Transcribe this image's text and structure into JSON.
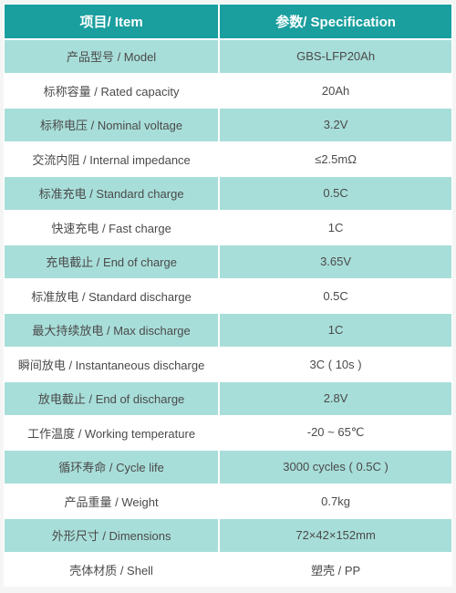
{
  "table": {
    "type": "table",
    "header_bg": "#1a9e9e",
    "header_color": "#ffffff",
    "row_odd_bg": "#a8ded9",
    "row_even_bg": "#ffffff",
    "text_color": "#4a4a4a",
    "border_color": "#ffffff",
    "font_size": 13,
    "header_font_size": 15,
    "columns": [
      {
        "label": "项目/ Item"
      },
      {
        "label": "参数/ Specification"
      }
    ],
    "rows": [
      {
        "item": "产品型号 / Model",
        "spec": "GBS-LFP20Ah"
      },
      {
        "item": "标称容量 / Rated capacity",
        "spec": "20Ah"
      },
      {
        "item": "标称电压 / Nominal voltage",
        "spec": "3.2V"
      },
      {
        "item": "交流内阻 / Internal impedance",
        "spec": "≤2.5mΩ"
      },
      {
        "item": "标准充电 / Standard charge",
        "spec": "0.5C"
      },
      {
        "item": "快速充电 / Fast charge",
        "spec": "1C"
      },
      {
        "item": "充电截止 / End of charge",
        "spec": "3.65V"
      },
      {
        "item": "标准放电 / Standard discharge",
        "spec": "0.5C"
      },
      {
        "item": "最大持续放电 / Max discharge",
        "spec": "1C"
      },
      {
        "item": "瞬间放电 / Instantaneous discharge",
        "spec": "3C ( 10s )"
      },
      {
        "item": "放电截止 / End of discharge",
        "spec": "2.8V"
      },
      {
        "item": "工作温度 / Working temperature",
        "spec": "-20 ~ 65℃"
      },
      {
        "item": "循环寿命 / Cycle life",
        "spec": "3000 cycles ( 0.5C )"
      },
      {
        "item": "产品重量 / Weight",
        "spec": "0.7kg"
      },
      {
        "item": "外形尺寸 / Dimensions",
        "spec": "72×42×152mm"
      },
      {
        "item": "壳体材质 / Shell",
        "spec": "塑壳 / PP"
      }
    ]
  }
}
